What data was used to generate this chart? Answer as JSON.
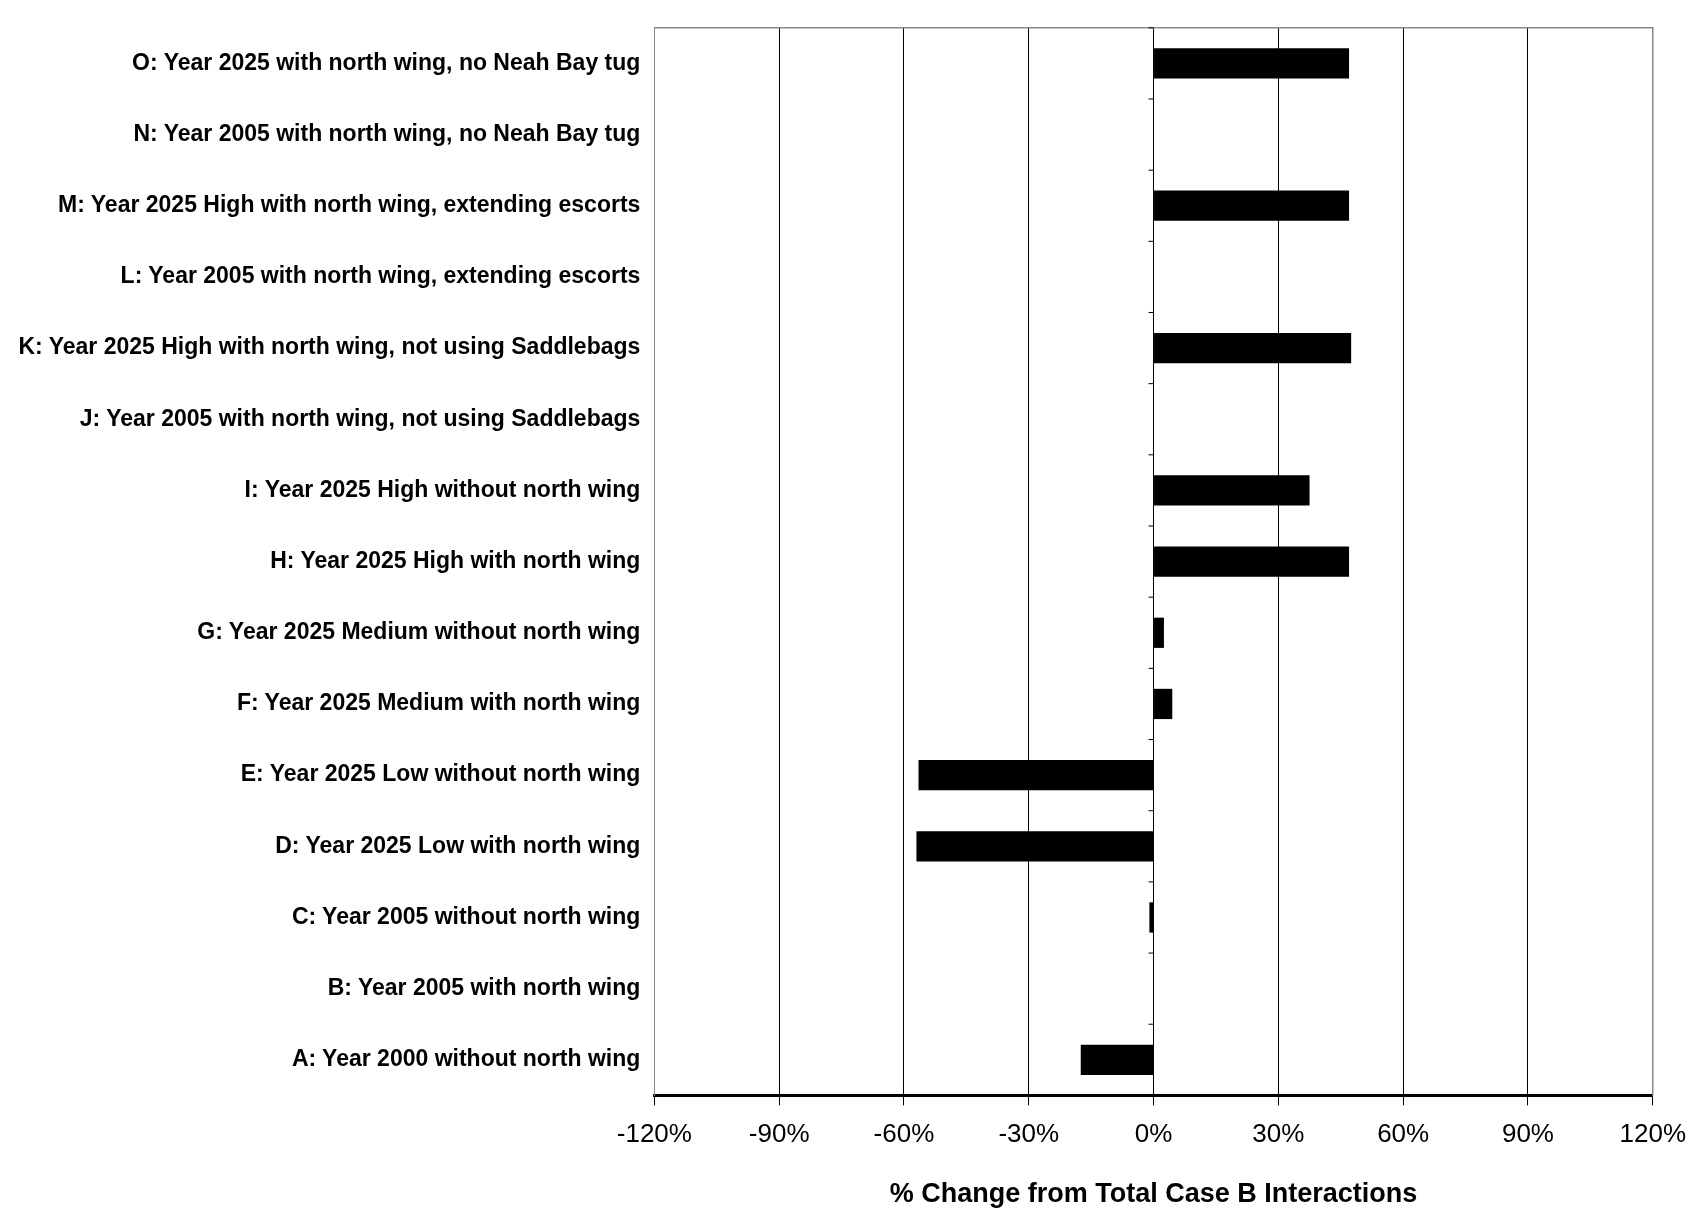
{
  "chart_data": {
    "type": "bar",
    "orientation": "horizontal",
    "xlabel": "% Change from Total Case B Interactions",
    "categories": [
      "O: Year 2025 with north wing, no Neah Bay tug",
      "N: Year 2005 with north wing, no Neah Bay tug",
      "M: Year 2025 High with north wing, extending escorts",
      "L: Year 2005 with north wing, extending escorts",
      "K: Year 2025 High with north wing, not using Saddlebags",
      "J: Year 2005 with north wing, not using Saddlebags",
      "I: Year 2025 High without north wing",
      "H: Year 2025 High with north wing",
      "G: Year 2025 Medium without north wing",
      "F: Year 2025 Medium with north wing",
      "E: Year 2025 Low without north wing",
      "D: Year 2025 Low with north wing",
      "C: Year 2005 without north wing",
      "B: Year 2005 with north wing",
      "A: Year 2000 without north wing"
    ],
    "values": [
      47,
      0,
      47,
      0,
      47.5,
      0,
      37.5,
      47,
      2.5,
      4.5,
      -56.5,
      -57,
      -1,
      0,
      -17.5
    ],
    "color": "#000000",
    "xlim": [
      -120,
      120
    ],
    "xticks": [
      {
        "value": -120,
        "label": "-120%"
      },
      {
        "value": -90,
        "label": "-90%"
      },
      {
        "value": -60,
        "label": "-60%"
      },
      {
        "value": -30,
        "label": "-30%"
      },
      {
        "value": 0,
        "label": "0%"
      },
      {
        "value": 30,
        "label": "30%"
      },
      {
        "value": 60,
        "label": "60%"
      },
      {
        "value": 90,
        "label": "90%"
      },
      {
        "value": 120,
        "label": "120%"
      }
    ],
    "grid": "x",
    "legend": false
  }
}
